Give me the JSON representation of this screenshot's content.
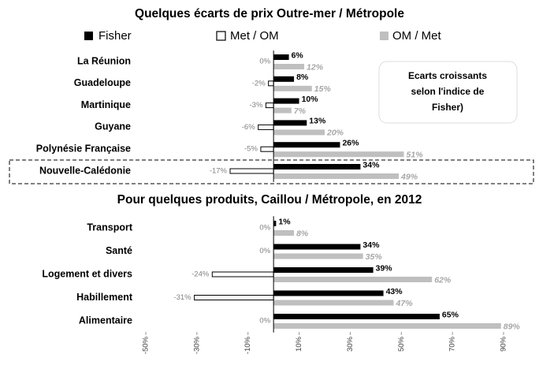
{
  "chart_data": [
    {
      "type": "bar",
      "orientation": "horizontal",
      "title": "Quelques écarts de prix Outre-mer / Métropole",
      "categories": [
        "La Réunion",
        "Guadeloupe",
        "Martinique",
        "Guyane",
        "Polynésie Française",
        "Nouvelle-Calédonie"
      ],
      "series": [
        {
          "name": "Fisher",
          "color": "#000000",
          "values": [
            6,
            8,
            10,
            13,
            26,
            34
          ],
          "value_labels": [
            "6%",
            "8%",
            "10%",
            "13%",
            "26%",
            "34%"
          ]
        },
        {
          "name": "Met / OM",
          "color": "#ffffff",
          "border": "#000000",
          "values": [
            0,
            -2,
            -3,
            -6,
            -5,
            -17
          ],
          "value_labels": [
            "0%",
            "-2%",
            "-3%",
            "-6%",
            "-5%",
            "-17%"
          ]
        },
        {
          "name": "OM / Met",
          "color": "#bfbfbf",
          "values": [
            12,
            15,
            7,
            20,
            51,
            49
          ],
          "value_labels": [
            "12%",
            "15%",
            "7%",
            "20%",
            "51%",
            "49%"
          ]
        }
      ],
      "xlim": [
        -50,
        90
      ],
      "annotation_lines": [
        "Ecarts croissants",
        "selon l'indice de",
        "Fisher)"
      ]
    },
    {
      "type": "bar",
      "orientation": "horizontal",
      "title": "Pour quelques produits, Caillou / Métropole, en 2012",
      "categories": [
        "Transport",
        "Santé",
        "Logement et divers",
        "Habillement",
        "Alimentaire"
      ],
      "series": [
        {
          "color": "#000000",
          "values": [
            1,
            34,
            39,
            43,
            65
          ],
          "value_labels": [
            "1%",
            "34%",
            "39%",
            "43%",
            "65%"
          ]
        },
        {
          "color": "#ffffff",
          "border": "#000000",
          "values": [
            0,
            0,
            -24,
            -31,
            0
          ],
          "value_labels": [
            "0%",
            "0%",
            "-24%",
            "-31%",
            "0%"
          ]
        },
        {
          "color": "#bfbfbf",
          "values": [
            8,
            35,
            62,
            47,
            89
          ],
          "value_labels": [
            "8%",
            "35%",
            "62%",
            "47%",
            "89%"
          ]
        }
      ],
      "xlim": [
        -50,
        90
      ],
      "xticks": [
        {
          "value": -50,
          "label": "-50%"
        },
        {
          "value": -30,
          "label": "-30%"
        },
        {
          "value": -10,
          "label": "-10%"
        },
        {
          "value": 10,
          "label": "10%"
        },
        {
          "value": 30,
          "label": "30%"
        },
        {
          "value": 50,
          "label": "50%"
        },
        {
          "value": 70,
          "label": "70%"
        },
        {
          "value": 90,
          "label": "90%"
        }
      ]
    }
  ]
}
